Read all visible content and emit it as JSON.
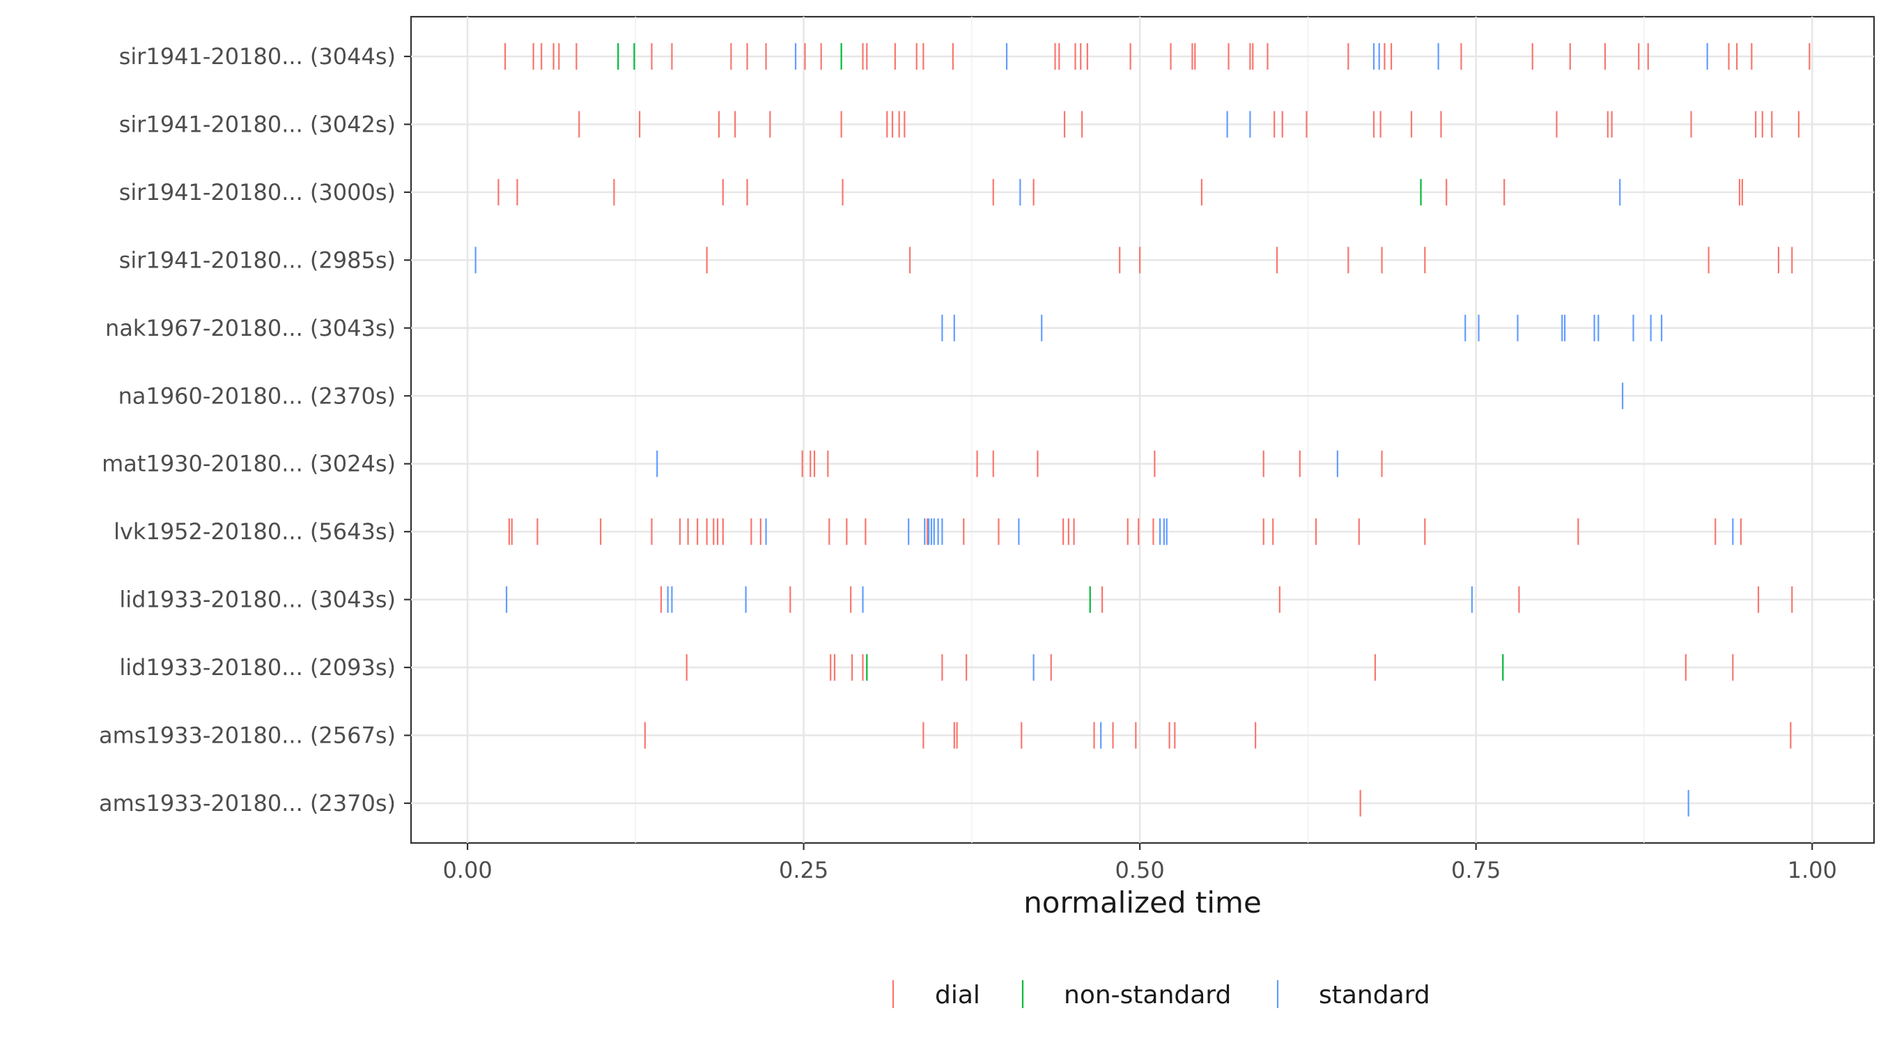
{
  "chart_data": {
    "type": "strip",
    "xlabel": "normalized time",
    "ylabel": "",
    "xlim": [
      -0.042,
      1.046
    ],
    "x_ticks": [
      0.0,
      0.25,
      0.5,
      0.75,
      1.0
    ],
    "x_tick_labels": [
      "0.00",
      "0.25",
      "0.50",
      "0.75",
      "1.00"
    ],
    "grid": true,
    "legend_position": "bottom",
    "event_types": [
      {
        "name": "dial",
        "color": "#F8766D"
      },
      {
        "name": "non-standard",
        "color": "#00BA38"
      },
      {
        "name": "standard",
        "color": "#619CFF"
      }
    ],
    "rows": [
      {
        "label": "sir1941-20180... (3044s)",
        "events": {
          "dial": [
            0.028,
            0.049,
            0.055,
            0.064,
            0.068,
            0.081,
            0.137,
            0.152,
            0.196,
            0.208,
            0.222,
            0.251,
            0.263,
            0.294,
            0.297,
            0.318,
            0.334,
            0.339,
            0.361,
            0.437,
            0.44,
            0.452,
            0.456,
            0.461,
            0.493,
            0.523,
            0.539,
            0.541,
            0.566,
            0.582,
            0.584,
            0.595,
            0.655,
            0.682,
            0.687,
            0.739,
            0.792,
            0.82,
            0.846,
            0.871,
            0.878,
            0.938,
            0.944,
            0.955,
            0.998
          ],
          "non-standard": [
            0.112,
            0.124,
            0.278
          ],
          "standard": [
            0.244,
            0.401,
            0.674,
            0.678,
            0.722,
            0.922
          ]
        }
      },
      {
        "label": "sir1941-20180... (3042s)",
        "events": {
          "dial": [
            0.083,
            0.128,
            0.187,
            0.199,
            0.225,
            0.278,
            0.312,
            0.316,
            0.321,
            0.325,
            0.444,
            0.457,
            0.6,
            0.606,
            0.624,
            0.674,
            0.679,
            0.702,
            0.724,
            0.81,
            0.848,
            0.851,
            0.91,
            0.958,
            0.963,
            0.97,
            0.99
          ],
          "non-standard": [],
          "standard": [
            0.565,
            0.582
          ]
        }
      },
      {
        "label": "sir1941-20180... (3000s)",
        "events": {
          "dial": [
            0.023,
            0.037,
            0.109,
            0.19,
            0.208,
            0.279,
            0.391,
            0.421,
            0.546,
            0.728,
            0.771,
            0.946,
            0.948
          ],
          "non-standard": [
            0.709
          ],
          "standard": [
            0.411,
            0.857
          ]
        }
      },
      {
        "label": "sir1941-20180... (2985s)",
        "events": {
          "dial": [
            0.178,
            0.329,
            0.485,
            0.5,
            0.602,
            0.655,
            0.68,
            0.712,
            0.923,
            0.975,
            0.985
          ],
          "non-standard": [],
          "standard": [
            0.006
          ]
        }
      },
      {
        "label": "nak1967-20180... (3043s)",
        "events": {
          "dial": [],
          "non-standard": [],
          "standard": [
            0.353,
            0.362,
            0.427,
            0.742,
            0.752,
            0.781,
            0.814,
            0.816,
            0.838,
            0.841,
            0.867,
            0.88,
            0.888
          ]
        }
      },
      {
        "label": "na1960-20180... (2370s)",
        "events": {
          "dial": [],
          "non-standard": [],
          "standard": [
            0.859
          ]
        }
      },
      {
        "label": "mat1930-20180... (3024s)",
        "events": {
          "dial": [
            0.249,
            0.255,
            0.258,
            0.268,
            0.379,
            0.391,
            0.424,
            0.511,
            0.592,
            0.619,
            0.68
          ],
          "non-standard": [],
          "standard": [
            0.141,
            0.647
          ]
        }
      },
      {
        "label": "lvk1952-20180... (5643s)",
        "events": {
          "dial": [
            0.031,
            0.033,
            0.052,
            0.099,
            0.137,
            0.158,
            0.164,
            0.171,
            0.178,
            0.183,
            0.186,
            0.19,
            0.211,
            0.218,
            0.269,
            0.282,
            0.296,
            0.342,
            0.369,
            0.395,
            0.443,
            0.447,
            0.451,
            0.491,
            0.499,
            0.51,
            0.592,
            0.599,
            0.631,
            0.663,
            0.712,
            0.826,
            0.928,
            0.947
          ],
          "non-standard": [],
          "standard": [
            0.222,
            0.328,
            0.34,
            0.343,
            0.345,
            0.347,
            0.35,
            0.353,
            0.41,
            0.515,
            0.518,
            0.52,
            0.941
          ]
        }
      },
      {
        "label": "lid1933-20180... (3043s)",
        "events": {
          "dial": [
            0.144,
            0.24,
            0.285,
            0.472,
            0.604,
            0.782,
            0.96,
            0.985
          ],
          "non-standard": [
            0.463
          ],
          "standard": [
            0.029,
            0.149,
            0.152,
            0.207,
            0.294,
            0.747
          ]
        }
      },
      {
        "label": "lid1933-20180... (2093s)",
        "events": {
          "dial": [
            0.163,
            0.27,
            0.273,
            0.286,
            0.294,
            0.353,
            0.371,
            0.434,
            0.675,
            0.906,
            0.941
          ],
          "non-standard": [
            0.297,
            0.77
          ],
          "standard": [
            0.421
          ]
        }
      },
      {
        "label": "ams1933-20180... (2567s)",
        "events": {
          "dial": [
            0.132,
            0.339,
            0.362,
            0.364,
            0.412,
            0.466,
            0.48,
            0.497,
            0.522,
            0.526,
            0.586,
            0.984
          ],
          "non-standard": [],
          "standard": [
            0.471
          ]
        }
      },
      {
        "label": "ams1933-20180... (2370s)",
        "events": {
          "dial": [
            0.664
          ],
          "non-standard": [],
          "standard": [
            0.908
          ]
        }
      }
    ]
  }
}
